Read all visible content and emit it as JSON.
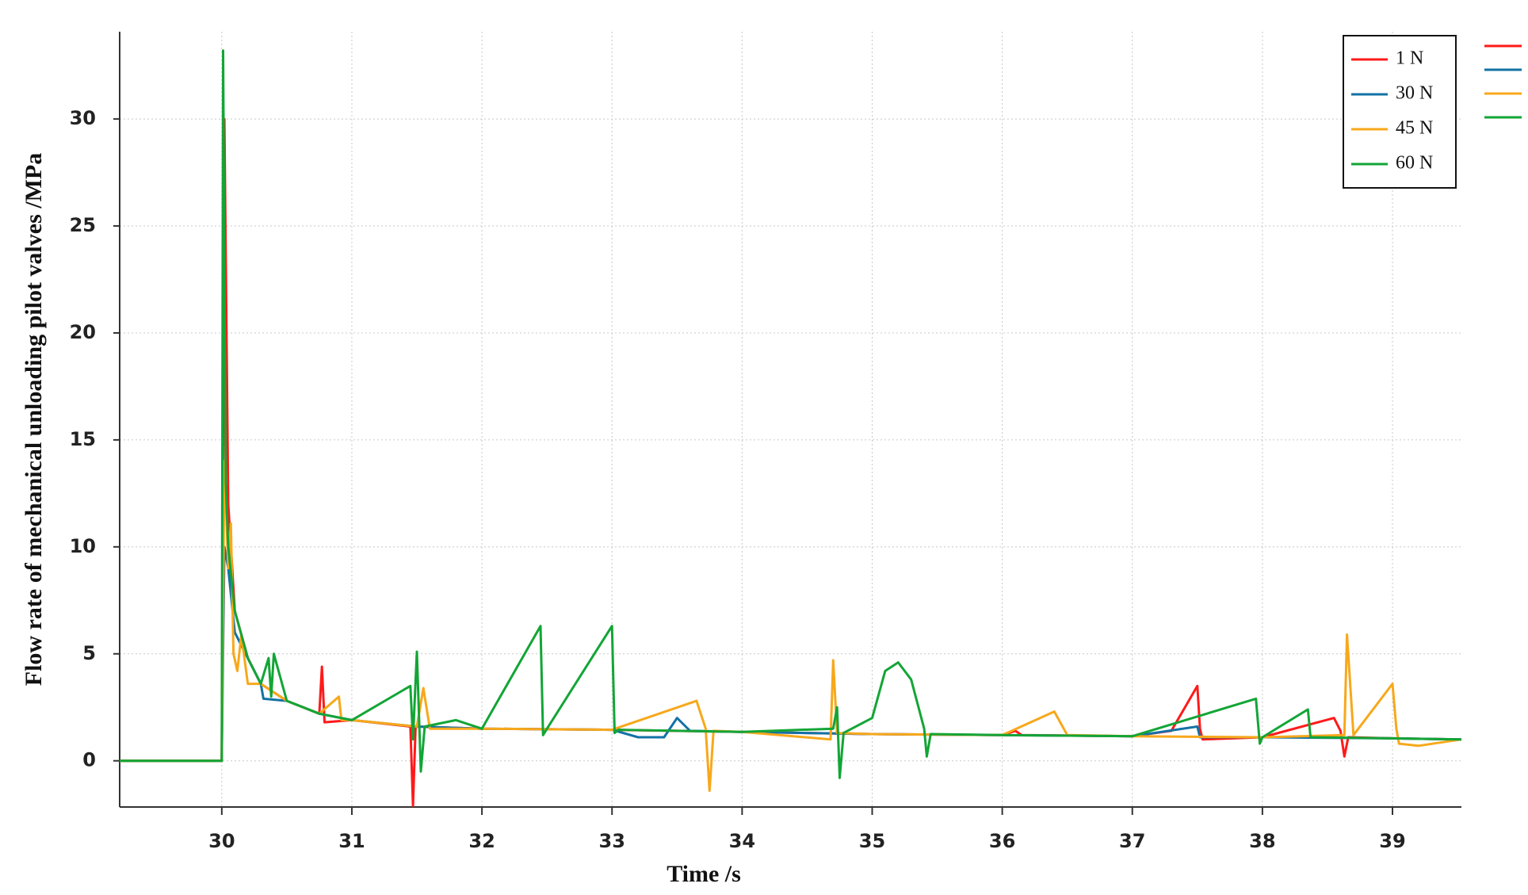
{
  "chart_data": {
    "type": "line",
    "xlabel": "Time /s",
    "ylabel": "Flow rate of mechanical unloading pilot valves /MPa",
    "xlim": [
      29.215,
      39.53
    ],
    "ylim": [
      -2.16,
      34.08
    ],
    "xticks": [
      30,
      31,
      32,
      33,
      34,
      35,
      36,
      37,
      38,
      39
    ],
    "yticks": [
      0,
      5,
      10,
      15,
      20,
      25,
      30
    ],
    "grid": true,
    "legend": "upper right",
    "series": [
      {
        "name": "1 N",
        "color": "#ff1a1a",
        "x": [
          29.215,
          29.999,
          30.0,
          30.02,
          30.05,
          30.1,
          30.2,
          30.3,
          30.5,
          30.75,
          30.77,
          30.79,
          31.0,
          31.45,
          31.47,
          31.49,
          32.0,
          33.0,
          34.0,
          35.0,
          36.0,
          36.1,
          36.15,
          37.0,
          37.3,
          37.5,
          37.52,
          37.54,
          38.0,
          38.55,
          38.6,
          38.63,
          38.66,
          39.0,
          39.53
        ],
        "values": [
          0,
          0,
          0,
          30,
          12,
          7,
          4.8,
          3.6,
          2.8,
          2.2,
          4.4,
          1.8,
          1.9,
          1.6,
          -2.1,
          1.6,
          1.5,
          1.45,
          1.35,
          1.25,
          1.2,
          1.4,
          1.2,
          1.15,
          1.4,
          3.5,
          1.5,
          1.0,
          1.1,
          2.0,
          1.4,
          0.2,
          1.1,
          1.05,
          1.0
        ]
      },
      {
        "name": "30 N",
        "color": "#1272a6",
        "x": [
          29.215,
          29.999,
          30.0,
          30.02,
          30.05,
          30.1,
          30.2,
          30.3,
          30.32,
          30.5,
          30.75,
          31.0,
          31.5,
          32.0,
          33.0,
          33.2,
          33.4,
          33.5,
          33.6,
          34.0,
          35.0,
          36.0,
          37.0,
          37.5,
          37.52,
          38.0,
          39.0,
          39.53
        ],
        "values": [
          0,
          0,
          0,
          10,
          9,
          6,
          4.8,
          3.6,
          2.9,
          2.8,
          2.2,
          1.9,
          1.6,
          1.5,
          1.45,
          1.1,
          1.1,
          2.0,
          1.4,
          1.35,
          1.25,
          1.2,
          1.15,
          1.6,
          1.1,
          1.1,
          1.05,
          1.0
        ]
      },
      {
        "name": "45 N",
        "color": "#f7a81b",
        "x": [
          29.215,
          29.999,
          30.0,
          30.02,
          30.05,
          30.07,
          30.09,
          30.12,
          30.15,
          30.2,
          30.3,
          30.5,
          30.75,
          30.9,
          30.92,
          31.0,
          31.5,
          31.55,
          31.6,
          32.0,
          33.0,
          33.65,
          33.72,
          33.75,
          33.78,
          34.0,
          34.68,
          34.7,
          34.73,
          35.0,
          36.0,
          36.4,
          36.5,
          37.0,
          38.0,
          38.63,
          38.65,
          38.7,
          39.0,
          39.03,
          39.05,
          39.2,
          39.53
        ],
        "values": [
          0,
          0,
          0,
          14,
          9,
          11.1,
          5,
          4.2,
          5.9,
          3.6,
          3.6,
          2.8,
          2.2,
          3.0,
          1.9,
          1.9,
          1.6,
          3.4,
          1.5,
          1.5,
          1.45,
          2.8,
          1.5,
          -1.4,
          1.4,
          1.35,
          1.0,
          4.7,
          1.3,
          1.25,
          1.2,
          2.3,
          1.2,
          1.15,
          1.1,
          1.2,
          5.9,
          1.2,
          3.6,
          1.5,
          0.8,
          0.7,
          1.0
        ]
      },
      {
        "name": "60 N",
        "color": "#13a536",
        "x": [
          29.215,
          29.999,
          30.0,
          30.01,
          30.03,
          30.05,
          30.1,
          30.2,
          30.3,
          30.36,
          30.38,
          30.4,
          30.5,
          30.75,
          31.0,
          31.45,
          31.47,
          31.5,
          31.53,
          31.56,
          31.8,
          32.0,
          32.45,
          32.47,
          32.5,
          33.0,
          33.02,
          33.05,
          34.0,
          34.7,
          34.73,
          34.75,
          34.78,
          35.0,
          35.1,
          35.2,
          35.3,
          35.4,
          35.42,
          35.45,
          36.0,
          37.0,
          37.95,
          37.98,
          38.0,
          38.35,
          38.37,
          39.0,
          39.53
        ],
        "values": [
          0,
          0,
          0,
          33.2,
          13,
          10,
          7,
          4.8,
          3.6,
          4.8,
          3.0,
          5.0,
          2.8,
          2.2,
          1.9,
          3.5,
          1.0,
          5.1,
          -0.5,
          1.6,
          1.9,
          1.5,
          6.3,
          1.2,
          1.5,
          6.3,
          1.3,
          1.45,
          1.35,
          1.5,
          2.5,
          -0.8,
          1.3,
          2.0,
          4.2,
          4.6,
          3.8,
          1.5,
          0.2,
          1.25,
          1.2,
          1.15,
          2.9,
          0.8,
          1.1,
          2.4,
          1.1,
          1.05,
          1.0
        ]
      }
    ]
  }
}
